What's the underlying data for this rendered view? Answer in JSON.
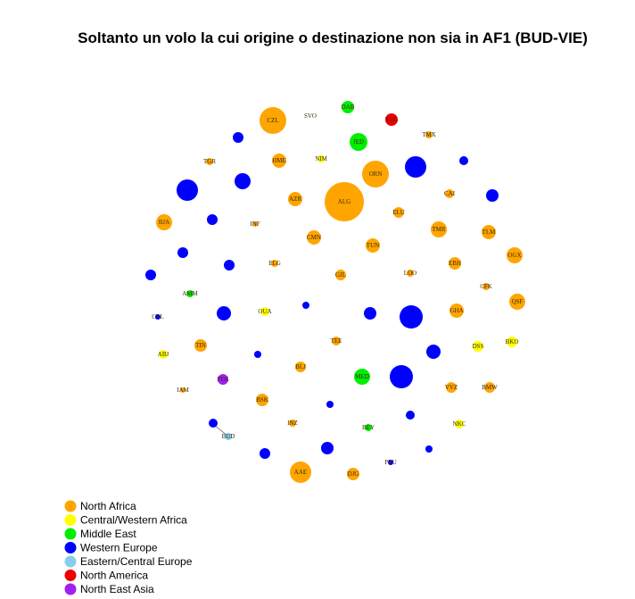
{
  "title": "Soltanto un volo la cui origine o destinazione non sia in AF1 (BUD-VIE)",
  "colors": {
    "North Africa": "#FFA500",
    "Central/Western Africa": "#FFFF00",
    "Middle East": "#00EE00",
    "Western Europe": "#0000FF",
    "Eastern/Central Europe": "#87CEEB",
    "North America": "#EE0000",
    "North East Asia": "#A020F0"
  },
  "legend": [
    {
      "label": "North Africa",
      "color": "#FFA500"
    },
    {
      "label": "Central/Western Africa",
      "color": "#FFFF00"
    },
    {
      "label": "Middle East",
      "color": "#00EE00"
    },
    {
      "label": "Western Europe",
      "color": "#0000FF"
    },
    {
      "label": "Eastern/Central Europe",
      "color": "#87CEEB"
    },
    {
      "label": "North America",
      "color": "#EE0000"
    },
    {
      "label": "North East Asia",
      "color": "#A020F0"
    }
  ],
  "nodes": [
    {
      "label": "CZL",
      "region": "North Africa"
    },
    {
      "label": "SVO",
      "region": "Eastern/Central Europe"
    },
    {
      "label": "DAB",
      "region": "Middle East"
    },
    {
      "label": "YUL",
      "region": "North America"
    },
    {
      "label": "",
      "region": "Western Europe"
    },
    {
      "label": "JED",
      "region": "Middle East"
    },
    {
      "label": "TMX",
      "region": "North Africa"
    },
    {
      "label": "TGR",
      "region": "North Africa"
    },
    {
      "label": "HME",
      "region": "North Africa"
    },
    {
      "label": "NIM",
      "region": "Central/Western Africa"
    },
    {
      "label": "ORN",
      "region": "North Africa"
    },
    {
      "label": "",
      "region": "Western Europe"
    },
    {
      "label": "",
      "region": "Western Europe"
    },
    {
      "label": "",
      "region": "Western Europe"
    },
    {
      "label": "",
      "region": "Western Europe"
    },
    {
      "label": "AZR",
      "region": "North Africa"
    },
    {
      "label": "ALG",
      "region": "North Africa"
    },
    {
      "label": "CAI",
      "region": "North Africa"
    },
    {
      "label": "",
      "region": "Western Europe"
    },
    {
      "label": "BJA",
      "region": "North Africa"
    },
    {
      "label": "",
      "region": "Western Europe"
    },
    {
      "label": "INF",
      "region": "North Africa"
    },
    {
      "label": "ELU",
      "region": "North Africa"
    },
    {
      "label": "TMR",
      "region": "North Africa"
    },
    {
      "label": "TLM",
      "region": "North Africa"
    },
    {
      "label": "CMN",
      "region": "North Africa"
    },
    {
      "label": "TUN",
      "region": "North Africa"
    },
    {
      "label": "",
      "region": "Western Europe"
    },
    {
      "label": "OGX",
      "region": "North Africa"
    },
    {
      "label": "EBH",
      "region": "North Africa"
    },
    {
      "label": "",
      "region": "Western Europe"
    },
    {
      "label": "ELG",
      "region": "North Africa"
    },
    {
      "label": "",
      "region": "Western Europe"
    },
    {
      "label": "GJL",
      "region": "North Africa"
    },
    {
      "label": "LOO",
      "region": "North Africa"
    },
    {
      "label": "CFK",
      "region": "North Africa"
    },
    {
      "label": "AMM",
      "region": "Middle East"
    },
    {
      "label": "QSF",
      "region": "North Africa"
    },
    {
      "label": "CRL",
      "region": "Western Europe"
    },
    {
      "label": "",
      "region": "Western Europe"
    },
    {
      "label": "OUA",
      "region": "Central/Western Africa"
    },
    {
      "label": "",
      "region": "Western Europe"
    },
    {
      "label": "",
      "region": "Western Europe"
    },
    {
      "label": "",
      "region": "Western Europe"
    },
    {
      "label": "GHA",
      "region": "North Africa"
    },
    {
      "label": "TIN",
      "region": "North Africa"
    },
    {
      "label": "TEE",
      "region": "North Africa"
    },
    {
      "label": "DSS",
      "region": "Central/Western Africa"
    },
    {
      "label": "BKO",
      "region": "Central/Western Africa"
    },
    {
      "label": "",
      "region": "Western Europe"
    },
    {
      "label": "ABJ",
      "region": "Central/Western Africa"
    },
    {
      "label": "",
      "region": "Western Europe"
    },
    {
      "label": "BLJ",
      "region": "North Africa"
    },
    {
      "label": "MED",
      "region": "Middle East"
    },
    {
      "label": "",
      "region": "Western Europe"
    },
    {
      "label": "IAM",
      "region": "North Africa"
    },
    {
      "label": "PEK",
      "region": "North East Asia"
    },
    {
      "label": "VVZ",
      "region": "North Africa"
    },
    {
      "label": "BMW",
      "region": "North Africa"
    },
    {
      "label": "BSK",
      "region": "North Africa"
    },
    {
      "label": "",
      "region": "Western Europe"
    },
    {
      "label": "INZ",
      "region": "North Africa"
    },
    {
      "label": "",
      "region": "Western Europe"
    },
    {
      "label": "NKC",
      "region": "Central/Western Africa"
    },
    {
      "label": "BEY",
      "region": "Middle East"
    },
    {
      "label": "",
      "region": "Western Europe"
    },
    {
      "label": "BUD",
      "region": "Eastern/Central Europe"
    },
    {
      "label": "",
      "region": "Western Europe"
    },
    {
      "label": "",
      "region": "Western Europe"
    },
    {
      "label": "",
      "region": "Western Europe"
    },
    {
      "label": "PRU",
      "region": "Western Europe"
    },
    {
      "label": "AAE",
      "region": "North Africa"
    },
    {
      "label": "DJG",
      "region": "North Africa"
    }
  ]
}
